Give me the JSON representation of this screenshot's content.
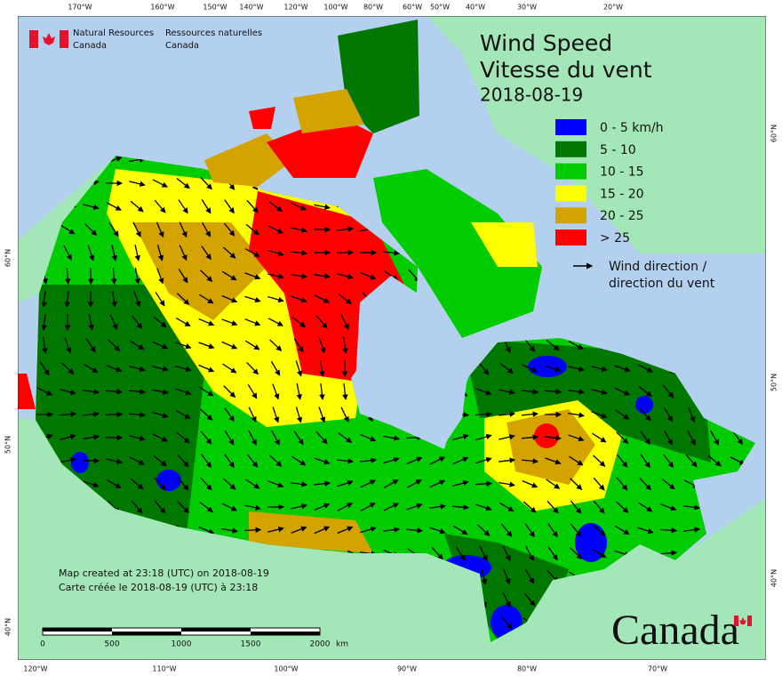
{
  "header": {
    "agency_en": [
      "Natural Resources",
      "Canada"
    ],
    "agency_fr": [
      "Ressources naturelles",
      "Canada"
    ]
  },
  "title": {
    "en": "Wind Speed",
    "fr": "Vitesse du vent",
    "date": "2018-08-19"
  },
  "legend": {
    "items": [
      {
        "label": "0 - 5 km/h",
        "color": "#0000ff"
      },
      {
        "label": "5 - 10",
        "color": "#007800"
      },
      {
        "label": "10 - 15",
        "color": "#00cc00"
      },
      {
        "label": "15 - 20",
        "color": "#ffff00"
      },
      {
        "label": "20 - 25",
        "color": "#d4a300"
      },
      {
        "label": "> 25",
        "color": "#ff0000"
      }
    ],
    "arrow": [
      "Wind direction /",
      "direction du vent"
    ]
  },
  "graticule": {
    "top": [
      "170°W",
      "160°W",
      "150°W",
      "140°W",
      "120°W",
      "100°W",
      "80°W",
      "60°W",
      "50°W",
      "40°W",
      "30°W",
      "20°W"
    ],
    "bottom": [
      "120°W",
      "110°W",
      "100°W",
      "90°W",
      "80°W",
      "70°W"
    ],
    "left": [
      "60°N",
      "50°N",
      "40°N"
    ],
    "right": [
      "60°N",
      "50°N",
      "40°N"
    ]
  },
  "credit": [
    "Map created at 23:18 (UTC) on 2018-08-19",
    "Carte créée le 2018-08-19 (UTC) à 23:18"
  ],
  "scale_bar": {
    "labels": [
      "0",
      "500",
      "1000",
      "1500",
      "2000"
    ],
    "unit": "km"
  },
  "wordmark": "Canada"
}
